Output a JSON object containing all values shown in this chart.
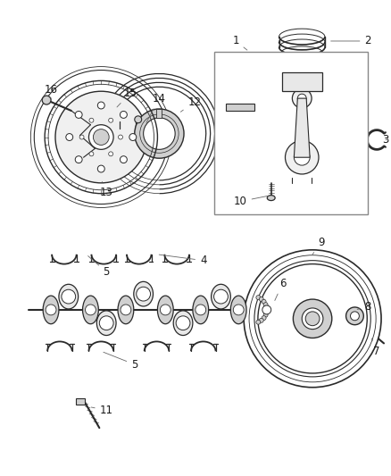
{
  "background_color": "#ffffff",
  "fig_width": 4.38,
  "fig_height": 5.33,
  "dpi": 100,
  "line_color": "#2a2a2a",
  "text_color": "#1a1a1a",
  "font_size": 8.5,
  "part_fill": "#e8e8e8",
  "part_fill2": "#d0d0d0",
  "part_fill3": "#f0f0f0"
}
